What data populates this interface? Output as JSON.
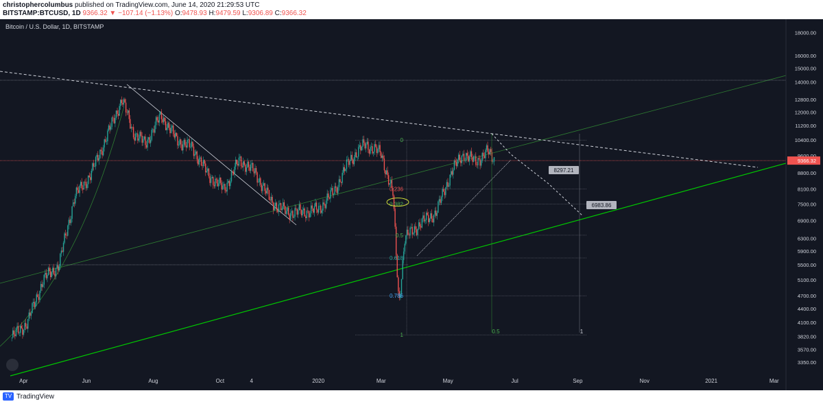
{
  "header": {
    "author": "christophercolumbus",
    "published_text": "published on TradingView.com, June 14, 2020 21:29:53 UTC",
    "symbol": "BITSTAMP:BTCUSD, 1D",
    "last": "9366.32",
    "change": "▼ −107.14 (−1.13%)",
    "o_label": "O:",
    "o": "9478.93",
    "h_label": "H:",
    "h": "9479.59",
    "l_label": "L:",
    "l": "9306.89",
    "c_label": "C:",
    "c": "9366.32"
  },
  "footer": {
    "brand": "TradingView"
  },
  "colors": {
    "bg": "#131722",
    "up": "#26a69a",
    "down": "#ef5350",
    "fib": "#4caf50",
    "trend": "#00c800"
  },
  "chart_data": {
    "type": "candlestick",
    "title": "Bitcoin / U.S. Dollar, 1D, BITSTAMP",
    "price_label": "9366.32",
    "y_scale": "log",
    "y_range": [
      3200,
      19000
    ],
    "y_ticks": [
      "18000.00",
      "16000.00",
      "15000.00",
      "14000.00",
      "12800.00",
      "12000.00",
      "11200.00",
      "10400.00",
      "9600.00",
      "8800.00",
      "8100.00",
      "7500.00",
      "6900.00",
      "6300.00",
      "5900.00",
      "5500.00",
      "5100.00",
      "4700.00",
      "4400.00",
      "4100.00",
      "3820.00",
      "3570.00",
      "3350.00"
    ],
    "x_ticks": [
      "Apr",
      "Jun",
      "Aug",
      "Oct",
      "4",
      "2020",
      "Mar",
      "May",
      "Jul",
      "Sep",
      "Nov",
      "2021",
      "Mar"
    ],
    "price_path": [
      [
        2019.22,
        3800
      ],
      [
        2019.26,
        4100
      ],
      [
        2019.3,
        5100
      ],
      [
        2019.34,
        5500
      ],
      [
        2019.38,
        7800
      ],
      [
        2019.42,
        8700
      ],
      [
        2019.46,
        10500
      ],
      [
        2019.5,
        12800
      ],
      [
        2019.53,
        10800
      ],
      [
        2019.56,
        10200
      ],
      [
        2019.6,
        11800
      ],
      [
        2019.64,
        10400
      ],
      [
        2019.68,
        10000
      ],
      [
        2019.72,
        8700
      ],
      [
        2019.76,
        8100
      ],
      [
        2019.8,
        9400
      ],
      [
        2019.84,
        8800
      ],
      [
        2019.88,
        7600
      ],
      [
        2019.92,
        7200
      ],
      [
        2019.96,
        7200
      ],
      [
        2020.0,
        7300
      ],
      [
        2020.04,
        8000
      ],
      [
        2020.08,
        9400
      ],
      [
        2020.12,
        10200
      ],
      [
        2020.16,
        9700
      ],
      [
        2020.19,
        7900
      ],
      [
        2020.205,
        4500
      ],
      [
        2020.22,
        6300
      ],
      [
        2020.26,
        6800
      ],
      [
        2020.3,
        7200
      ],
      [
        2020.34,
        8900
      ],
      [
        2020.37,
        9700
      ],
      [
        2020.4,
        9300
      ],
      [
        2020.43,
        9800
      ],
      [
        2020.45,
        9366
      ]
    ],
    "annotations": {
      "fib_levels": [
        {
          "label": "0",
          "value": 10400
        },
        {
          "label": "0.236",
          "value": 8100
        },
        {
          "label": "0.382",
          "value": 7500
        },
        {
          "label": "0.5",
          "value": 6400
        },
        {
          "label": "0.618",
          "value": 5700
        },
        {
          "label": "0.786",
          "value": 4700
        },
        {
          "label": "1",
          "value": 3850
        }
      ],
      "time_fib_labels": [
        "0.5",
        "1"
      ],
      "price_callouts": [
        "8297.21",
        "6983.86"
      ]
    }
  }
}
